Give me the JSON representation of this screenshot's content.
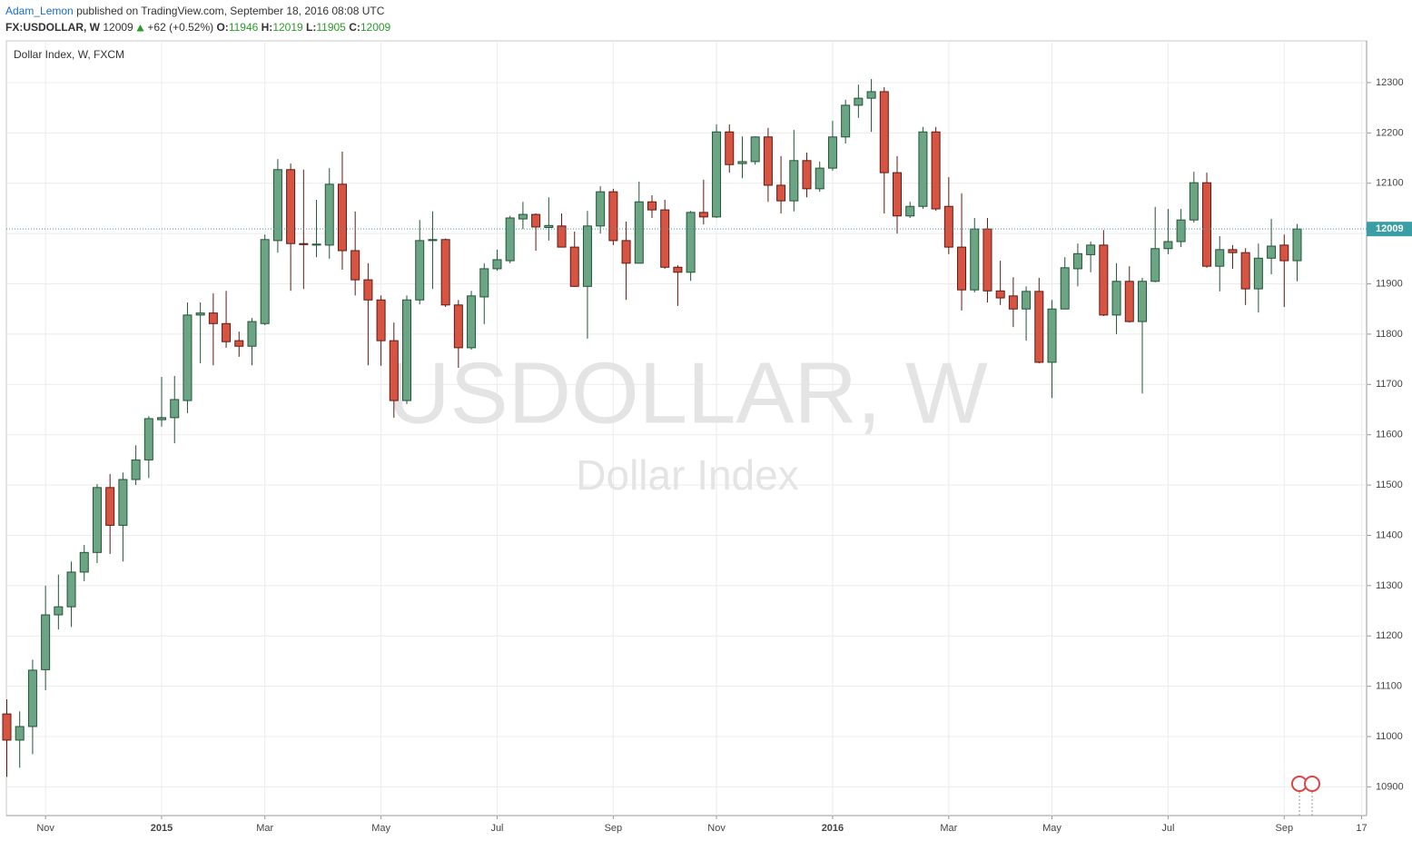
{
  "header": {
    "author": "Adam_Lemon",
    "published": "published on TradingView.com, September 18, 2016 08:08 UTC",
    "symbol": "FX:USDOLLAR, W",
    "change": "+62 (+0.52%)",
    "ohlc_labels": [
      "O:",
      "H:",
      "L:",
      "C:"
    ]
  },
  "chart_data": {
    "type": "candlestick",
    "title": "Dollar Index, W, FXCM",
    "watermark": "USDOLLAR, W",
    "watermark_subtitle": "Dollar Index",
    "up_color": "#6ba583",
    "down_color": "#d75442",
    "grid": true,
    "ylim": [
      10843,
      12383
    ],
    "yticks": [
      10900,
      11000,
      11100,
      11200,
      11300,
      11400,
      11500,
      11600,
      11700,
      11800,
      11900,
      12000,
      12100,
      12200,
      12300
    ],
    "categories": [
      null,
      null,
      null,
      "Nov",
      null,
      null,
      null,
      null,
      null,
      null,
      null,
      null,
      "2015",
      null,
      null,
      null,
      null,
      null,
      null,
      null,
      "Mar",
      null,
      null,
      null,
      null,
      null,
      null,
      null,
      null,
      "May",
      null,
      null,
      null,
      null,
      null,
      null,
      null,
      null,
      "Jul",
      null,
      null,
      null,
      null,
      null,
      null,
      null,
      null,
      "Sep",
      null,
      null,
      null,
      null,
      null,
      null,
      null,
      "Nov",
      null,
      null,
      null,
      null,
      null,
      null,
      null,
      null,
      "2016",
      null,
      null,
      null,
      null,
      null,
      null,
      null,
      null,
      "Mar",
      null,
      null,
      null,
      null,
      null,
      null,
      null,
      "May",
      null,
      null,
      null,
      null,
      null,
      null,
      null,
      null,
      "Jul",
      null,
      null,
      null,
      null,
      null,
      null,
      null,
      null,
      "Sep",
      null,
      null,
      null,
      null,
      null,
      "17"
    ],
    "open": [
      11045,
      10993,
      11020,
      11133,
      11242,
      11258,
      11327,
      11366,
      11495,
      11420,
      11511,
      11550,
      11630,
      11634,
      11668,
      11838,
      11842,
      11821,
      11787,
      11776,
      11821,
      11986,
      12127,
      11980,
      11977,
      11977,
      12098,
      11966,
      11908,
      11868,
      11787,
      11668,
      11868,
      11986,
      11988,
      11858,
      11773,
      11874,
      11930,
      11946,
      12029,
      12038,
      12012,
      12015,
      11973,
      11895,
      12015,
      12083,
      11986,
      11941,
      12063,
      12047,
      11933,
      11923,
      12042,
      12033,
      12202,
      12139,
      12143,
      12192,
      12096,
      12065,
      12145,
      12089,
      12130,
      12192,
      12255,
      12269,
      12282,
      12121,
      12035,
      12054,
      12202,
      12054,
      11973,
      11888,
      12009,
      11886,
      11876,
      11850,
      11885,
      11744,
      11850,
      11930,
      11958,
      11977,
      11838,
      11905,
      11825,
      11905,
      11970,
      11984,
      12027,
      12101,
      11935,
      11968,
      11962,
      11890,
      11951,
      11977,
      11946,
      null,
      null,
      null,
      null,
      null
    ],
    "high": [
      11074,
      11050,
      11153,
      11300,
      11322,
      11348,
      11381,
      11502,
      11522,
      11525,
      11579,
      11637,
      11715,
      11717,
      11863,
      11863,
      11881,
      11886,
      11805,
      11832,
      11998,
      12148,
      12139,
      12127,
      12067,
      12130,
      12163,
      12044,
      11941,
      11877,
      11823,
      11877,
      12027,
      12044,
      11990,
      11868,
      11886,
      11941,
      11968,
      12035,
      12063,
      12040,
      12072,
      12040,
      12004,
      12045,
      12094,
      12089,
      12024,
      12103,
      12076,
      12067,
      11937,
      12045,
      12107,
      12217,
      12217,
      12193,
      12193,
      12210,
      12154,
      12206,
      12161,
      12143,
      12224,
      12266,
      12296,
      12307,
      12291,
      12154,
      12063,
      12212,
      12212,
      12112,
      12080,
      12031,
      12031,
      11946,
      11913,
      11895,
      11912,
      11868,
      11953,
      11980,
      11984,
      12007,
      11941,
      11935,
      11912,
      12053,
      12049,
      12049,
      12123,
      12121,
      11995,
      11977,
      11971,
      11980,
      12029,
      11998,
      12019,
      null,
      null,
      null,
      null,
      null
    ],
    "low": [
      10920,
      10938,
      10965,
      11092,
      11213,
      11218,
      11309,
      11345,
      11363,
      11348,
      11500,
      11514,
      11616,
      11583,
      11643,
      11742,
      11738,
      11773,
      11755,
      11738,
      11818,
      11962,
      11886,
      11890,
      11953,
      11950,
      11928,
      11877,
      11738,
      11737,
      11634,
      11661,
      11859,
      11890,
      11854,
      11733,
      11769,
      11820,
      11926,
      11941,
      12009,
      11966,
      11986,
      11973,
      11894,
      11791,
      12000,
      11977,
      11868,
      11941,
      12031,
      11930,
      11856,
      11906,
      12018,
      12031,
      12121,
      12110,
      12137,
      12063,
      12040,
      12044,
      12072,
      12083,
      12125,
      12179,
      12230,
      12202,
      12040,
      12000,
      12031,
      12049,
      12045,
      11959,
      11847,
      11883,
      11863,
      11858,
      11814,
      11787,
      11742,
      11673,
      11850,
      11895,
      11923,
      11836,
      11800,
      11823,
      11682,
      11903,
      11959,
      11973,
      12022,
      11932,
      11885,
      11930,
      11858,
      11843,
      11919,
      11854,
      11905,
      null,
      null,
      null,
      null,
      null
    ],
    "close": [
      10993,
      11020,
      11132,
      11242,
      11258,
      11327,
      11366,
      11495,
      11420,
      11511,
      11550,
      11632,
      11634,
      11670,
      11838,
      11842,
      11821,
      11785,
      11776,
      11825,
      11988,
      12127,
      11980,
      11978,
      11979,
      12098,
      11966,
      11908,
      11868,
      11787,
      11668,
      11868,
      11986,
      11988,
      11858,
      11773,
      11876,
      11930,
      11948,
      12031,
      12038,
      12013,
      12016,
      11973,
      11895,
      12015,
      12083,
      11986,
      11941,
      12063,
      12047,
      11933,
      11923,
      12042,
      12033,
      12202,
      12137,
      12143,
      12192,
      12096,
      12065,
      12145,
      12089,
      12130,
      12192,
      12255,
      12269,
      12282,
      12121,
      12035,
      12054,
      12202,
      12049,
      11973,
      11888,
      12009,
      11886,
      11872,
      11850,
      11885,
      11744,
      11850,
      11932,
      11960,
      11977,
      11838,
      11905,
      11825,
      11905,
      11970,
      11984,
      12027,
      12101,
      11935,
      11968,
      11962,
      11890,
      11951,
      11975,
      11946,
      12009,
      null,
      null,
      null,
      null,
      null
    ]
  }
}
